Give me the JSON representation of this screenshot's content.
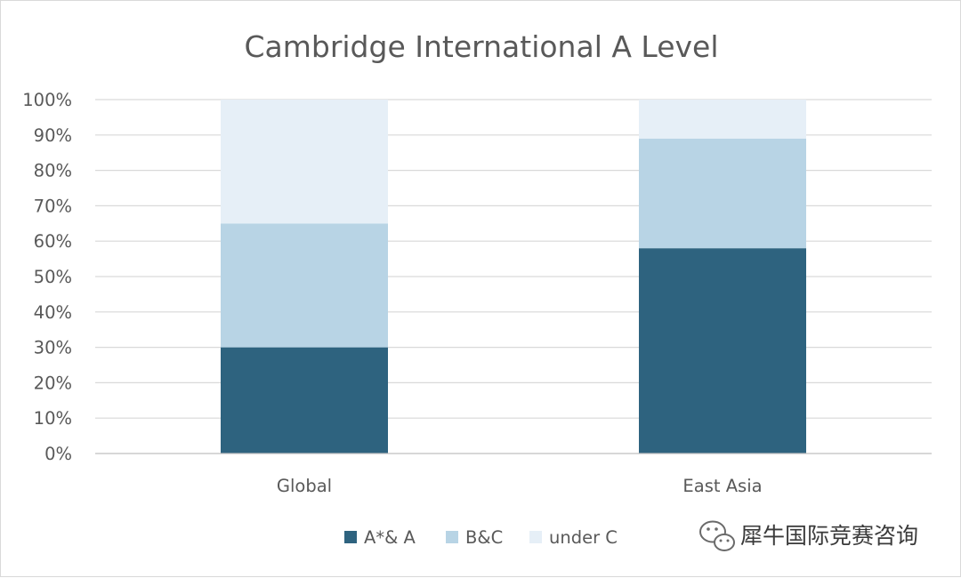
{
  "chart_data": {
    "type": "bar",
    "stacked": true,
    "title": "Cambridge International A Level",
    "categories": [
      "Global",
      "East Asia"
    ],
    "series": [
      {
        "name": "A*& A",
        "values": [
          30,
          58
        ],
        "color": "#2e637f"
      },
      {
        "name": "B&C",
        "values": [
          35,
          31
        ],
        "color": "#b8d4e5"
      },
      {
        "name": "under C",
        "values": [
          35,
          11
        ],
        "color": "#e6eff7"
      }
    ],
    "ylim": [
      0,
      100
    ],
    "yticks": [
      "0%",
      "10%",
      "20%",
      "30%",
      "40%",
      "50%",
      "60%",
      "70%",
      "80%",
      "90%",
      "100%"
    ],
    "grid": true,
    "legend_position": "bottom"
  },
  "watermark": {
    "icon": "wechat-icon",
    "text": "犀牛国际竞赛咨询"
  }
}
